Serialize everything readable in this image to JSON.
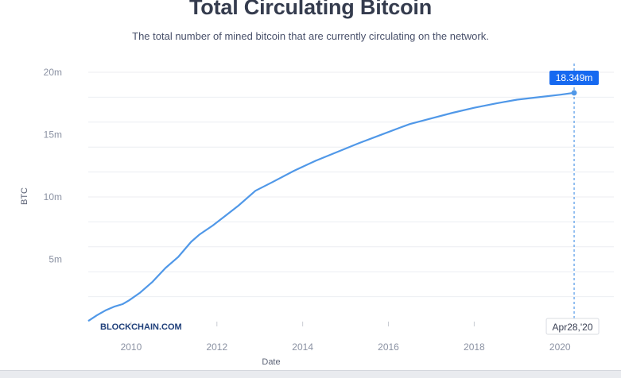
{
  "chart_data": {
    "type": "line",
    "title": "Total Circulating Bitcoin",
    "subtitle": "The total number of mined bitcoin that are currently circulating on the network.",
    "xlabel": "Date",
    "ylabel": "BTC",
    "x_ticks": [
      "2010",
      "2012",
      "2014",
      "2016",
      "2018",
      "2020"
    ],
    "y_ticks": [
      "5m",
      "10m",
      "15m",
      "20m"
    ],
    "ylim": [
      0,
      20000000
    ],
    "xlim": [
      2009.0,
      2020.7
    ],
    "grid": true,
    "series": [
      {
        "x": [
          2009.0,
          2009.2,
          2009.4,
          2009.6,
          2009.8,
          2009.95,
          2010.2,
          2010.5,
          2010.8,
          2011.1,
          2011.4,
          2011.6,
          2011.9,
          2012.2,
          2012.5,
          2012.9,
          2013.3,
          2013.8,
          2014.3,
          2014.8,
          2015.3,
          2015.8,
          2016.3,
          2016.5,
          2017.0,
          2017.5,
          2018.0,
          2018.5,
          2019.0,
          2019.5,
          2020.0,
          2020.33
        ],
        "values": [
          50000,
          500000,
          900000,
          1200000,
          1400000,
          1700000,
          2300000,
          3200000,
          4300000,
          5200000,
          6400000,
          7000000,
          7700000,
          8500000,
          9300000,
          10500000,
          11200000,
          12100000,
          12900000,
          13600000,
          14300000,
          14950000,
          15600000,
          15850000,
          16300000,
          16750000,
          17150000,
          17500000,
          17800000,
          18000000,
          18200000,
          18349000
        ]
      }
    ],
    "highlight": {
      "value_label": "18.349m",
      "date_label": "Apr28,'20"
    },
    "watermark": "BLOCKCHAIN.COM",
    "colors": {
      "line": "#5098e8",
      "tooltip": "#1669f0",
      "grid": "#eceef2",
      "title": "#353c4e"
    }
  }
}
